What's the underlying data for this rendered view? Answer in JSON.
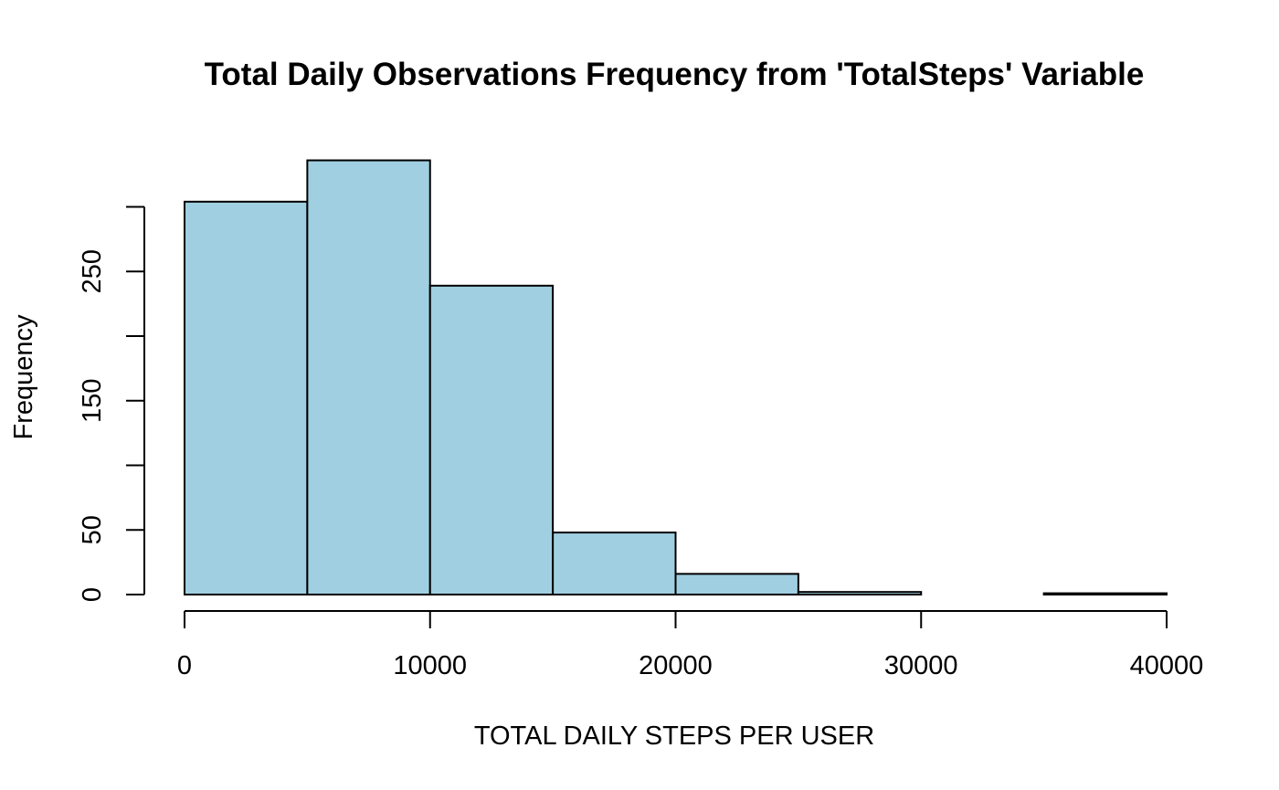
{
  "chart_data": {
    "type": "bar",
    "title": "Total Daily Observations Frequency from 'TotalSteps' Variable",
    "xlabel": "TOTAL DAILY STEPS PER USER",
    "ylabel": "Frequency",
    "bin_edges": [
      0,
      5000,
      10000,
      15000,
      20000,
      25000,
      30000,
      35000,
      40000
    ],
    "values": [
      304,
      336,
      239,
      48,
      16,
      2,
      0,
      1
    ],
    "xlim": [
      0,
      40000
    ],
    "ylim": [
      0,
      336
    ],
    "x_ticks": [
      0,
      10000,
      20000,
      30000,
      40000
    ],
    "x_tick_labels": [
      "0",
      "10000",
      "20000",
      "30000",
      "40000"
    ],
    "y_ticks": [
      0,
      50,
      100,
      150,
      200,
      250,
      300
    ],
    "y_tick_labels": [
      "0",
      "50",
      "",
      "150",
      "",
      "250",
      ""
    ],
    "bar_color": "#a0cfe1",
    "grid": false,
    "legend": "none"
  }
}
